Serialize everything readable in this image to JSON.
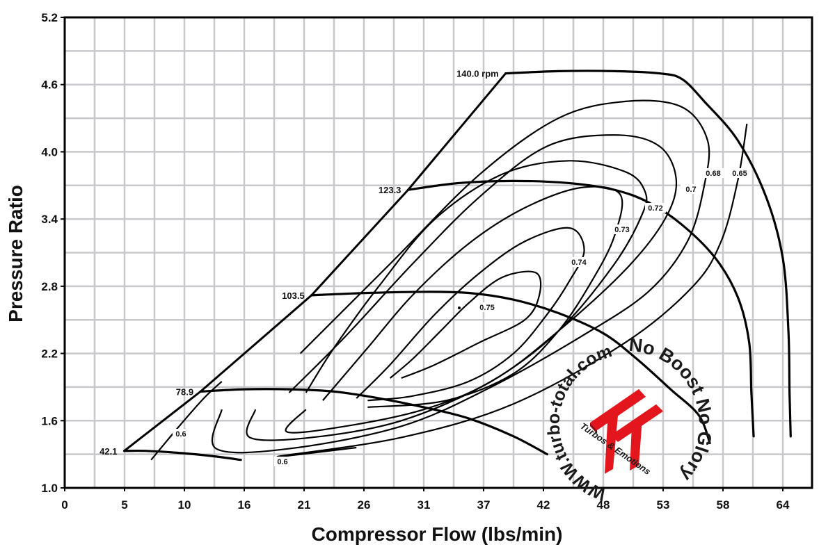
{
  "chart_data": {
    "type": "line",
    "title": "",
    "xlabel": "Compressor Flow (lbs/min)",
    "ylabel": "Pressure Ratio",
    "xlim": [
      0,
      66.5
    ],
    "ylim": [
      1.0,
      5.2
    ],
    "x_ticks": [
      "0",
      "5",
      "10",
      "16",
      "21",
      "26",
      "31",
      "37",
      "42",
      "48",
      "53",
      "58",
      "64"
    ],
    "y_ticks": [
      "1.0",
      "1.6",
      "2.2",
      "2.8",
      "3.4",
      "4.0",
      "4.6",
      "5.2"
    ],
    "grid": true,
    "colors": {
      "grid": "#c8c8cc",
      "line": "#000000",
      "logo_red": "#e3161e",
      "text": "#111111"
    },
    "speed_lines": [
      {
        "label": "42.1",
        "points": [
          [
            5.3,
            1.33
          ],
          [
            7.3,
            1.33
          ],
          [
            10.5,
            1.31
          ],
          [
            13.5,
            1.28
          ],
          [
            15.7,
            1.25
          ]
        ]
      },
      {
        "label": "78.9",
        "points": [
          [
            12.1,
            1.86
          ],
          [
            16,
            1.88
          ],
          [
            20,
            1.88
          ],
          [
            24,
            1.86
          ],
          [
            28,
            1.8
          ],
          [
            32,
            1.72
          ],
          [
            36,
            1.62
          ],
          [
            40,
            1.46
          ],
          [
            43,
            1.3
          ]
        ]
      },
      {
        "label": "103.5",
        "points": [
          [
            22,
            2.72
          ],
          [
            27,
            2.74
          ],
          [
            32,
            2.75
          ],
          [
            36,
            2.74
          ],
          [
            40,
            2.68
          ],
          [
            44,
            2.56
          ],
          [
            48,
            2.38
          ],
          [
            51,
            2.15
          ],
          [
            54,
            1.88
          ],
          [
            56.5,
            1.65
          ],
          [
            57.5,
            1.4
          ]
        ]
      },
      {
        "label": "123.3",
        "points": [
          [
            30.6,
            3.66
          ],
          [
            35,
            3.72
          ],
          [
            40,
            3.74
          ],
          [
            45,
            3.72
          ],
          [
            49,
            3.66
          ],
          [
            52,
            3.55
          ],
          [
            55,
            3.35
          ],
          [
            58,
            3.05
          ],
          [
            60,
            2.7
          ],
          [
            61,
            2.3
          ],
          [
            61.2,
            1.85
          ],
          [
            61.4,
            1.46
          ]
        ]
      },
      {
        "label": "140.0 rpm",
        "points": [
          [
            39.3,
            4.7
          ],
          [
            44,
            4.72
          ],
          [
            49,
            4.72
          ],
          [
            53,
            4.7
          ],
          [
            55,
            4.65
          ],
          [
            57,
            4.45
          ],
          [
            60,
            4.1
          ],
          [
            62.5,
            3.6
          ],
          [
            64,
            3.05
          ],
          [
            64.5,
            2.4
          ],
          [
            64.6,
            1.85
          ],
          [
            64.7,
            1.46
          ]
        ]
      }
    ],
    "surge_line": {
      "points": [
        [
          5.3,
          1.33
        ],
        [
          12.1,
          1.86
        ],
        [
          22,
          2.72
        ],
        [
          30.6,
          3.66
        ],
        [
          39.3,
          4.7
        ]
      ]
    },
    "efficiency_islands": [
      {
        "label": "0.75",
        "points": [
          [
            29,
            1.98
          ],
          [
            31,
            2.15
          ],
          [
            33.5,
            2.4
          ],
          [
            36,
            2.65
          ],
          [
            39,
            2.88
          ],
          [
            42,
            2.92
          ],
          [
            42.3,
            2.72
          ],
          [
            41,
            2.5
          ],
          [
            37,
            2.3
          ],
          [
            33,
            2.1
          ],
          [
            30,
            1.98
          ]
        ]
      },
      {
        "label": "0.74",
        "points": [
          [
            26,
            1.8
          ],
          [
            29,
            2.1
          ],
          [
            33,
            2.55
          ],
          [
            37,
            2.92
          ],
          [
            41,
            3.2
          ],
          [
            45,
            3.32
          ],
          [
            46.3,
            3.12
          ],
          [
            45,
            2.85
          ],
          [
            43,
            2.55
          ],
          [
            40,
            2.2
          ],
          [
            36,
            1.95
          ],
          [
            31,
            1.82
          ],
          [
            27,
            1.78
          ]
        ]
      },
      {
        "label": "0.73",
        "points": [
          [
            23,
            1.78
          ],
          [
            27,
            2.25
          ],
          [
            31,
            2.72
          ],
          [
            36,
            3.18
          ],
          [
            41,
            3.5
          ],
          [
            46,
            3.68
          ],
          [
            49.5,
            3.62
          ],
          [
            49,
            3.25
          ],
          [
            47,
            2.85
          ],
          [
            44,
            2.4
          ],
          [
            40,
            2.02
          ],
          [
            34,
            1.78
          ],
          [
            27,
            1.72
          ]
        ]
      },
      {
        "label": "0.72",
        "points": [
          [
            21.5,
            1.7
          ],
          [
            19.8,
            1.5
          ],
          [
            25,
            1.55
          ],
          [
            32,
            1.7
          ],
          [
            38,
            1.95
          ],
          [
            44,
            2.4
          ],
          [
            49,
            3.0
          ],
          [
            51.5,
            3.45
          ],
          [
            51.7,
            3.65
          ],
          [
            50,
            3.82
          ],
          [
            45,
            3.92
          ],
          [
            39,
            3.8
          ],
          [
            33,
            3.4
          ],
          [
            28,
            2.8
          ],
          [
            24,
            2.25
          ],
          [
            21.5,
            1.85
          ]
        ]
      },
      {
        "label": "0.7",
        "points": [
          [
            17,
            1.7
          ],
          [
            16.5,
            1.45
          ],
          [
            22,
            1.45
          ],
          [
            30,
            1.6
          ],
          [
            38,
            1.95
          ],
          [
            44,
            2.4
          ],
          [
            50,
            2.95
          ],
          [
            53.5,
            3.4
          ],
          [
            54.5,
            3.75
          ],
          [
            53,
            4.05
          ],
          [
            49,
            4.15
          ],
          [
            43,
            4.05
          ],
          [
            37,
            3.6
          ],
          [
            31,
            3.0
          ],
          [
            25,
            2.35
          ],
          [
            20,
            1.85
          ]
        ]
      },
      {
        "label": "0.68",
        "points": [
          [
            14,
            1.7
          ],
          [
            13.5,
            1.35
          ],
          [
            20,
            1.35
          ],
          [
            30,
            1.55
          ],
          [
            38,
            1.9
          ],
          [
            46,
            2.35
          ],
          [
            52,
            2.75
          ],
          [
            55.5,
            3.2
          ],
          [
            57,
            3.7
          ],
          [
            57.3,
            4.1
          ],
          [
            55,
            4.4
          ],
          [
            50,
            4.45
          ],
          [
            44,
            4.3
          ],
          [
            37,
            3.8
          ],
          [
            29,
            3.0
          ],
          [
            21,
            2.2
          ]
        ]
      },
      {
        "label": "0.65",
        "points": [
          [
            26,
            1.36
          ],
          [
            19,
            1.28
          ],
          [
            30,
            1.45
          ],
          [
            40,
            1.75
          ],
          [
            50,
            2.3
          ],
          [
            56,
            2.8
          ],
          [
            58.5,
            3.2
          ],
          [
            60,
            3.75
          ],
          [
            60.8,
            4.25
          ]
        ]
      },
      {
        "label": "0.6",
        "points": [
          [
            7.7,
            1.25
          ],
          [
            10.2,
            1.55
          ],
          [
            12.4,
            1.8
          ],
          [
            14,
            1.95
          ]
        ]
      }
    ],
    "annotations": [
      "140.0 rpm",
      "123.3",
      "103.5",
      "78.9",
      "42.1",
      "0.75",
      "0.74",
      "0.73",
      "0.72",
      "0.7",
      "0.68",
      "0.65",
      "0.6",
      "0.6"
    ]
  },
  "watermark": {
    "arc_text_left": "WWW.turbo-total.com",
    "arc_text_right": "No Boost No Glory",
    "logo_letters": "TT",
    "tagline": "Turbos & Emotions"
  }
}
